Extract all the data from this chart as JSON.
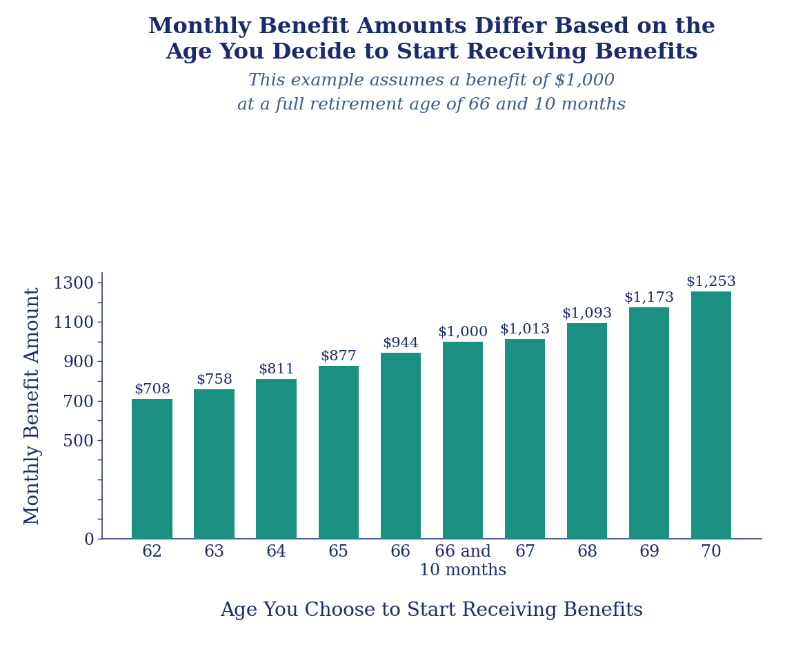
{
  "title_line1": "Monthly Benefit Amounts Differ Based on the",
  "title_line2": "Age You Decide to Start Receiving Benefits",
  "subtitle_line1": "This example assumes a benefit of $1,000",
  "subtitle_line2": "at a full retirement age of 66 and 10 months",
  "xlabel": "Age You Choose to Start Receiving Benefits",
  "ylabel": "Monthly Benefit Amount",
  "categories": [
    "62",
    "63",
    "64",
    "65",
    "66",
    "66 and\n10 months",
    "67",
    "68",
    "69",
    "70"
  ],
  "values": [
    708,
    758,
    811,
    877,
    944,
    1000,
    1013,
    1093,
    1173,
    1253
  ],
  "labels": [
    "$708",
    "$758",
    "$811",
    "$877",
    "$944",
    "$1,000",
    "$1,013",
    "$1,093",
    "$1,173",
    "$1,253"
  ],
  "bar_color": "#1a9080",
  "title_color": "#1a2a6c",
  "subtitle_color": "#3a5a8c",
  "label_color": "#1a2a6c",
  "axis_color": "#2a3a7c",
  "tick_color": "#1a2a6c",
  "ylabel_color": "#1a2a6c",
  "xlabel_color": "#1a2a6c",
  "ylim": [
    0,
    1350
  ],
  "ytick_positions": [
    0,
    100,
    200,
    300,
    400,
    500,
    600,
    700,
    800,
    900,
    1000,
    1100,
    1200,
    1300
  ],
  "ytick_labels_show": [
    0,
    500,
    700,
    900,
    1100,
    1300
  ],
  "background_color": "#ffffff",
  "title_fontsize": 23,
  "subtitle_fontsize": 18,
  "axis_label_fontsize": 20,
  "tick_fontsize": 17,
  "bar_label_fontsize": 15
}
